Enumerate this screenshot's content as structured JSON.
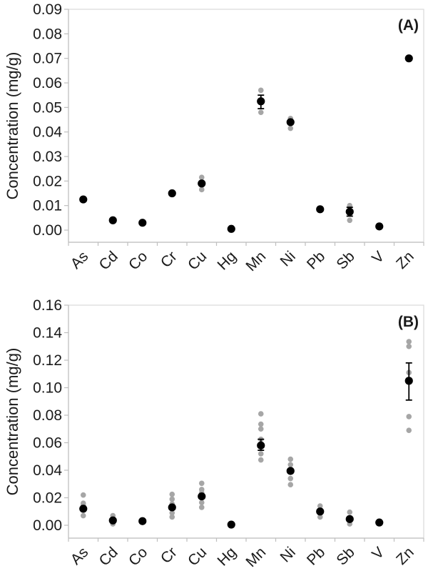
{
  "styles": {
    "background": "#ffffff",
    "mean_color": "#000000",
    "replicate_color": "#a6a6a6",
    "error_bar_color": "#000000",
    "axis_color": "#bfbfbf",
    "plot_border_color": "#d9d9d9",
    "text_color": "#1a1a1a"
  },
  "chart_data": [
    {
      "type": "scatter",
      "panel_label": "(A)",
      "title": "",
      "xlabel": "",
      "ylabel": "Concentration (mg/g)",
      "grid": false,
      "legend": false,
      "categories": [
        "As",
        "Cd",
        "Co",
        "Cr",
        "Cu",
        "Hg",
        "Mn",
        "Ni",
        "Pb",
        "Sb",
        "V",
        "Zn"
      ],
      "ylim": [
        0,
        0.09
      ],
      "yticks": [
        0,
        0.01,
        0.02,
        0.03,
        0.04,
        0.05,
        0.06,
        0.07,
        0.08,
        0.09
      ],
      "points": [
        {
          "element": "As",
          "mean": 0.0125,
          "err": null,
          "replicates": []
        },
        {
          "element": "Cd",
          "mean": 0.004,
          "err": null,
          "replicates": []
        },
        {
          "element": "Co",
          "mean": 0.003,
          "err": null,
          "replicates": []
        },
        {
          "element": "Cr",
          "mean": 0.015,
          "err": null,
          "replicates": []
        },
        {
          "element": "Cu",
          "mean": 0.019,
          "err": null,
          "replicates": [
            0.0215,
            0.0165
          ]
        },
        {
          "element": "Hg",
          "mean": 0.0005,
          "err": null,
          "replicates": []
        },
        {
          "element": "Mn",
          "mean": 0.0525,
          "err": [
            0.0495,
            0.055
          ],
          "replicates": [
            0.057,
            0.048
          ]
        },
        {
          "element": "Ni",
          "mean": 0.044,
          "err": null,
          "replicates": [
            0.0455,
            0.0415
          ]
        },
        {
          "element": "Pb",
          "mean": 0.0085,
          "err": null,
          "replicates": []
        },
        {
          "element": "Sb",
          "mean": 0.0075,
          "err": [
            0.0057,
            0.0093
          ],
          "replicates": [
            0.01,
            0.004
          ]
        },
        {
          "element": "V",
          "mean": 0.0015,
          "err": null,
          "replicates": []
        },
        {
          "element": "Zn",
          "mean": 0.07,
          "err": null,
          "replicates": []
        }
      ]
    },
    {
      "type": "scatter",
      "panel_label": "(B)",
      "title": "",
      "xlabel": "",
      "ylabel": "Concentration (mg/g)",
      "grid": false,
      "legend": false,
      "categories": [
        "As",
        "Cd",
        "Co",
        "Cr",
        "Cu",
        "Hg",
        "Mn",
        "Ni",
        "Pb",
        "Sb",
        "V",
        "Zn"
      ],
      "ylim": [
        0,
        0.16
      ],
      "yticks": [
        0,
        0.02,
        0.04,
        0.06,
        0.08,
        0.1,
        0.12,
        0.14,
        0.16
      ],
      "points": [
        {
          "element": "As",
          "mean": 0.012,
          "err": null,
          "replicates": [
            0.022,
            0.016,
            0.0145,
            0.007
          ]
        },
        {
          "element": "Cd",
          "mean": 0.0035,
          "err": null,
          "replicates": [
            0.007,
            0.001
          ]
        },
        {
          "element": "Co",
          "mean": 0.003,
          "err": null,
          "replicates": []
        },
        {
          "element": "Cr",
          "mean": 0.013,
          "err": null,
          "replicates": [
            0.0225,
            0.019,
            0.0155,
            0.009,
            0.006
          ]
        },
        {
          "element": "Cu",
          "mean": 0.021,
          "err": null,
          "replicates": [
            0.0305,
            0.026,
            0.0235,
            0.0165,
            0.013
          ]
        },
        {
          "element": "Hg",
          "mean": 0.0005,
          "err": null,
          "replicates": []
        },
        {
          "element": "Mn",
          "mean": 0.058,
          "err": [
            0.0545,
            0.0625
          ],
          "replicates": [
            0.081,
            0.0735,
            0.07,
            0.0625,
            0.052,
            0.0475
          ]
        },
        {
          "element": "Ni",
          "mean": 0.0395,
          "err": null,
          "replicates": [
            0.048,
            0.044,
            0.034,
            0.0295
          ]
        },
        {
          "element": "Pb",
          "mean": 0.01,
          "err": null,
          "replicates": [
            0.014,
            0.006
          ]
        },
        {
          "element": "Sb",
          "mean": 0.0045,
          "err": null,
          "replicates": [
            0.0095,
            0.001
          ]
        },
        {
          "element": "V",
          "mean": 0.002,
          "err": null,
          "replicates": []
        },
        {
          "element": "Zn",
          "mean": 0.105,
          "err": [
            0.091,
            0.118
          ],
          "replicates": [
            0.1335,
            0.13,
            0.111,
            0.079,
            0.069
          ]
        }
      ]
    }
  ]
}
